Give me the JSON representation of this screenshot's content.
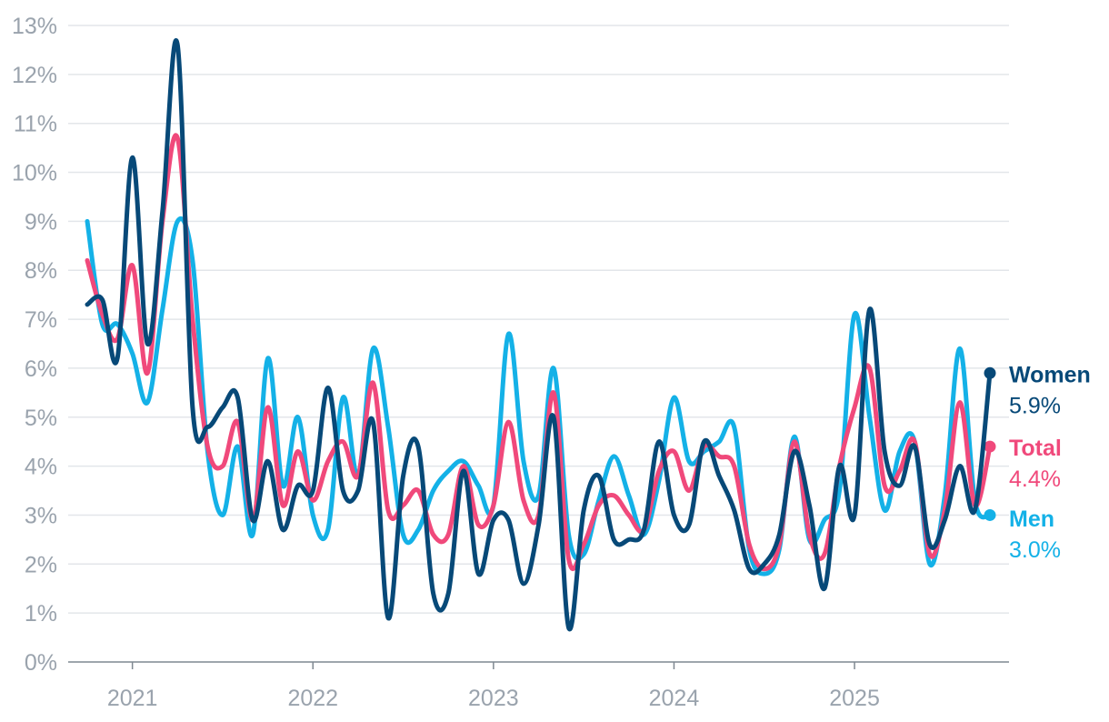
{
  "chart_data": {
    "type": "line",
    "title": "",
    "xlabel": "",
    "ylabel": "",
    "ylim": [
      0,
      13
    ],
    "y_ticks": [
      "0%",
      "1%",
      "2%",
      "3%",
      "4%",
      "5%",
      "6%",
      "7%",
      "8%",
      "9%",
      "10%",
      "11%",
      "12%",
      "13%"
    ],
    "x_ticks": [
      "2021",
      "2022",
      "2023",
      "2024",
      "2025"
    ],
    "grid": true,
    "legend": "end-of-line labels",
    "x": [
      "2020-10",
      "2020-11",
      "2020-12",
      "2021-01",
      "2021-02",
      "2021-03",
      "2021-04",
      "2021-05",
      "2021-06",
      "2021-07",
      "2021-08",
      "2021-09",
      "2021-10",
      "2021-11",
      "2021-12",
      "2022-01",
      "2022-02",
      "2022-03",
      "2022-04",
      "2022-05",
      "2022-06",
      "2022-07",
      "2022-08",
      "2022-09",
      "2022-10",
      "2022-11",
      "2022-12",
      "2023-01",
      "2023-02",
      "2023-03",
      "2023-04",
      "2023-05",
      "2023-06",
      "2023-07",
      "2023-08",
      "2023-09",
      "2023-10",
      "2023-11",
      "2023-12",
      "2024-01",
      "2024-02",
      "2024-03",
      "2024-04",
      "2024-05",
      "2024-06",
      "2024-07",
      "2024-08",
      "2024-09",
      "2024-10",
      "2024-11",
      "2024-12",
      "2025-01",
      "2025-02",
      "2025-03",
      "2025-04",
      "2025-05",
      "2025-06",
      "2025-07",
      "2025-08",
      "2025-09",
      "2025-10"
    ],
    "series": [
      {
        "name": "Men",
        "color": "#14b1e7",
        "end_value": "3.0%",
        "values": [
          9.0,
          6.9,
          6.9,
          6.3,
          5.3,
          7.2,
          9.0,
          8.2,
          4.3,
          3.0,
          4.4,
          2.6,
          6.2,
          3.6,
          5.0,
          3.0,
          2.7,
          5.4,
          3.8,
          6.4,
          4.8,
          2.6,
          2.7,
          3.5,
          3.9,
          4.1,
          3.6,
          3.2,
          6.7,
          4.1,
          3.4,
          6.0,
          2.6,
          2.2,
          3.3,
          4.2,
          3.4,
          2.6,
          3.7,
          5.4,
          4.1,
          4.3,
          4.5,
          4.8,
          2.3,
          1.8,
          2.3,
          4.6,
          2.5,
          2.9,
          3.5,
          7.1,
          5.0,
          3.1,
          4.3,
          4.5,
          2.0,
          3.4,
          6.4,
          3.3,
          3.0
        ]
      },
      {
        "name": "Total",
        "color": "#f0497b",
        "end_value": "4.4%",
        "values": [
          8.2,
          7.1,
          6.6,
          8.1,
          5.9,
          9.0,
          10.7,
          7.0,
          4.4,
          4.0,
          4.9,
          2.9,
          5.2,
          3.2,
          4.3,
          3.3,
          4.1,
          4.5,
          3.8,
          5.7,
          3.1,
          3.2,
          3.5,
          2.6,
          2.6,
          4.0,
          2.8,
          3.2,
          4.9,
          3.3,
          3.0,
          5.5,
          2.1,
          2.4,
          3.2,
          3.4,
          3.0,
          2.7,
          3.9,
          4.3,
          3.5,
          4.4,
          4.2,
          4.0,
          2.4,
          1.9,
          2.4,
          4.5,
          2.6,
          2.2,
          4.0,
          5.2,
          6.0,
          3.6,
          3.9,
          4.5,
          2.2,
          3.1,
          5.3,
          3.2,
          4.4
        ]
      },
      {
        "name": "Women",
        "color": "#074978",
        "end_value": "5.9%",
        "values": [
          7.3,
          7.4,
          6.2,
          10.3,
          6.5,
          9.2,
          12.6,
          5.2,
          4.8,
          5.2,
          5.4,
          2.9,
          4.1,
          2.7,
          3.6,
          3.5,
          5.6,
          3.5,
          3.5,
          4.9,
          0.9,
          3.8,
          4.4,
          1.4,
          1.4,
          3.9,
          1.8,
          2.9,
          2.9,
          1.6,
          2.8,
          5.0,
          0.7,
          3.1,
          3.8,
          2.5,
          2.5,
          2.7,
          4.5,
          3.0,
          2.8,
          4.5,
          3.8,
          3.1,
          1.9,
          2.0,
          2.6,
          4.3,
          3.2,
          1.5,
          4.0,
          3.0,
          7.2,
          4.3,
          3.6,
          4.4,
          2.4,
          2.9,
          4.0,
          3.1,
          5.9
        ]
      }
    ]
  }
}
